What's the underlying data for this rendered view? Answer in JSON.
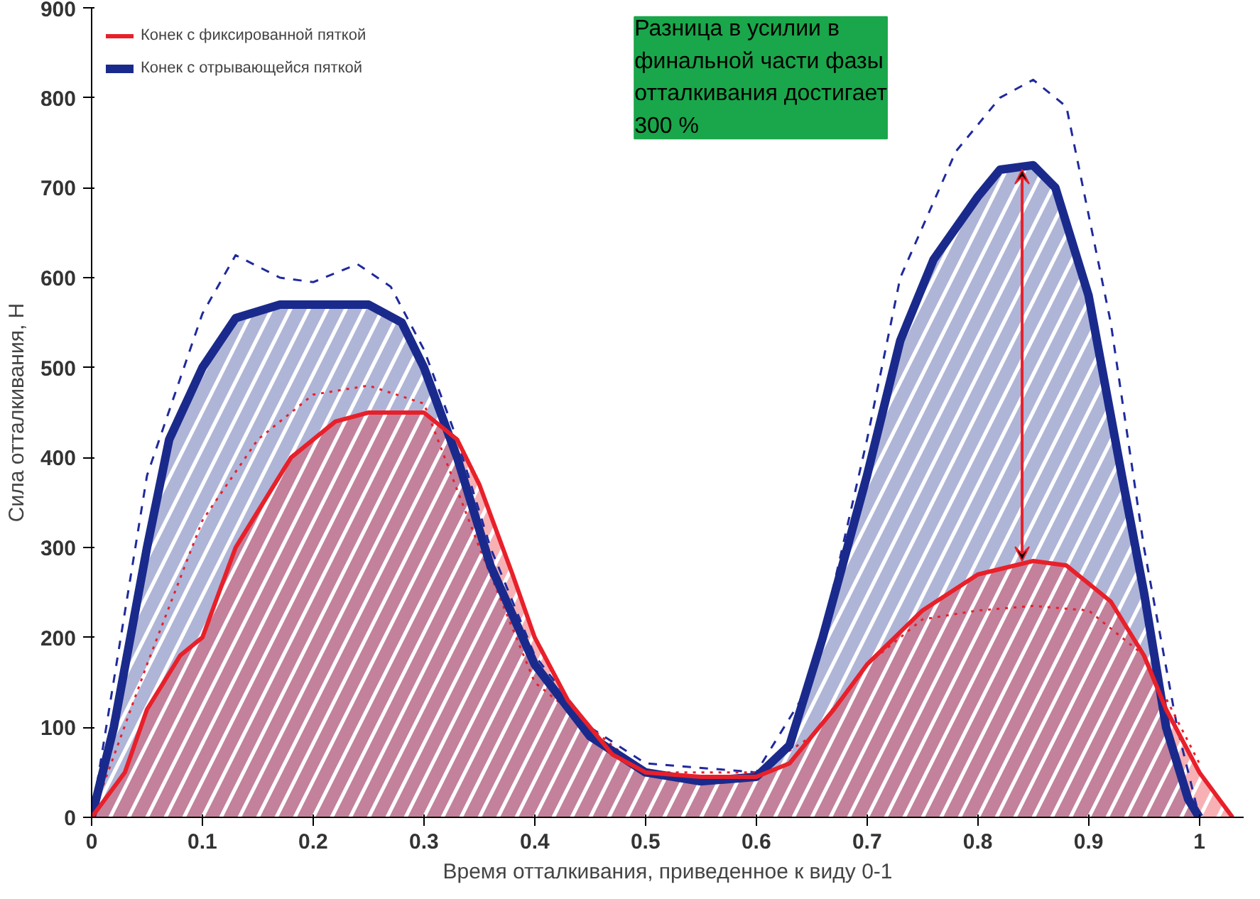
{
  "chart_data": {
    "type": "area",
    "xlabel": "Время отталкивания, приведенное к виду 0-1",
    "ylabel": "Сила отталкивания, Н",
    "xlim": [
      0,
      1.04
    ],
    "ylim": [
      0,
      900
    ],
    "xticks": [
      0,
      0.1,
      0.2,
      0.3,
      0.4,
      0.5,
      0.6,
      0.7,
      0.8,
      0.9,
      1
    ],
    "yticks": [
      0,
      100,
      200,
      300,
      400,
      500,
      600,
      700,
      800,
      900
    ],
    "grid": false,
    "legend": "top left",
    "marker": "none",
    "series": [
      {
        "type": "line",
        "line_style": "dashed",
        "color": "#1f2a9c",
        "x": [
          0,
          0.05,
          0.1,
          0.13,
          0.17,
          0.2,
          0.24,
          0.27,
          0.3,
          0.33,
          0.36,
          0.4,
          0.45,
          0.5,
          0.6,
          0.65,
          0.7,
          0.73,
          0.78,
          0.82,
          0.85,
          0.88,
          0.92,
          0.95,
          0.98,
          1.0
        ],
        "values": [
          0,
          380,
          560,
          625,
          600,
          595,
          615,
          590,
          520,
          420,
          300,
          180,
          100,
          60,
          50,
          150,
          420,
          600,
          740,
          800,
          820,
          790,
          550,
          300,
          100,
          0
        ]
      },
      {
        "type": "line",
        "line_style": "dotted",
        "color": "#e8202a",
        "x": [
          0,
          0.05,
          0.1,
          0.15,
          0.2,
          0.25,
          0.3,
          0.35,
          0.4,
          0.5,
          0.6,
          0.65,
          0.7,
          0.75,
          0.8,
          0.85,
          0.9,
          0.95,
          1.0
        ],
        "values": [
          0,
          170,
          330,
          420,
          470,
          480,
          460,
          300,
          150,
          50,
          50,
          90,
          170,
          220,
          230,
          235,
          230,
          180,
          60
        ]
      },
      {
        "name": "Конек с отрывающейся пяткой",
        "color": "#1a2a8c",
        "x": [
          0,
          0.02,
          0.05,
          0.07,
          0.1,
          0.13,
          0.17,
          0.2,
          0.25,
          0.28,
          0.3,
          0.33,
          0.36,
          0.4,
          0.45,
          0.5,
          0.55,
          0.6,
          0.63,
          0.66,
          0.7,
          0.73,
          0.76,
          0.8,
          0.82,
          0.85,
          0.87,
          0.9,
          0.93,
          0.95,
          0.97,
          0.99,
          1.0
        ],
        "values": [
          0,
          100,
          300,
          420,
          500,
          555,
          570,
          570,
          570,
          550,
          500,
          400,
          280,
          170,
          90,
          50,
          40,
          45,
          80,
          200,
          380,
          530,
          620,
          690,
          720,
          725,
          700,
          580,
          380,
          250,
          100,
          20,
          0
        ]
      },
      {
        "name": "Конек с фиксированной пяткой",
        "color": "#e8202a",
        "x": [
          0,
          0.03,
          0.05,
          0.08,
          0.1,
          0.13,
          0.15,
          0.18,
          0.22,
          0.25,
          0.3,
          0.33,
          0.35,
          0.38,
          0.4,
          0.43,
          0.47,
          0.5,
          0.55,
          0.6,
          0.63,
          0.67,
          0.7,
          0.75,
          0.8,
          0.85,
          0.88,
          0.92,
          0.95,
          0.97,
          1.0,
          1.03
        ],
        "values": [
          0,
          50,
          120,
          180,
          200,
          300,
          340,
          400,
          440,
          450,
          450,
          420,
          370,
          270,
          200,
          130,
          70,
          50,
          45,
          45,
          60,
          120,
          170,
          230,
          270,
          285,
          280,
          240,
          180,
          120,
          50,
          0
        ]
      }
    ],
    "annotations": [
      "Разница в усилии в финальной части фазы отталкивания достигает 300 %"
    ]
  }
}
